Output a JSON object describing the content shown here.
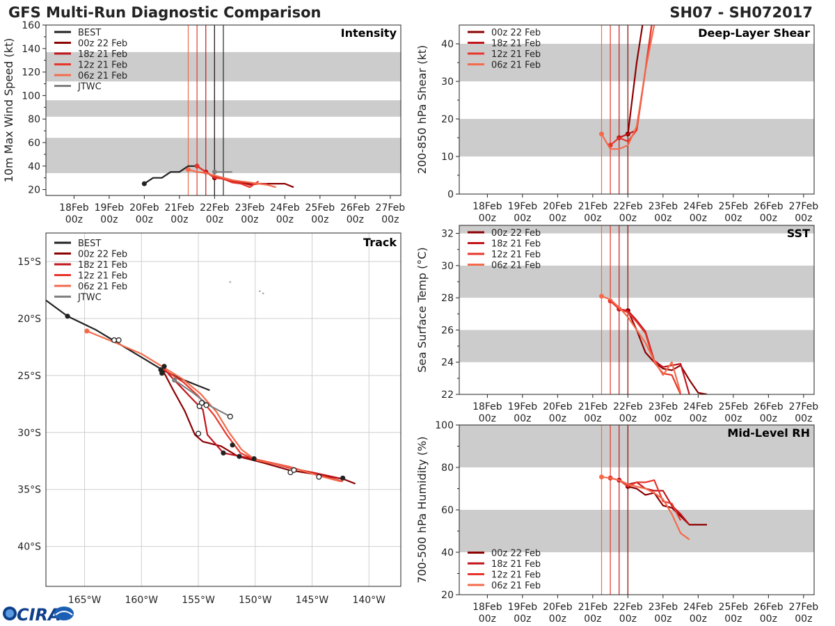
{
  "header": {
    "title": "GFS Multi-Run Diagnostic Comparison",
    "storm_id": "SH07 - SH072017"
  },
  "logo": {
    "text": "CIRA"
  },
  "colors": {
    "best": "#222222",
    "jtwc": "#808080",
    "run_00z22": "#8b0000",
    "run_18z21": "#c0151b",
    "run_12z21": "#e8352a",
    "run_06z21": "#f46a4b",
    "band": "#cccccc"
  },
  "time_axis": {
    "tick_days": [
      "18Feb",
      "19Feb",
      "20Feb",
      "21Feb",
      "22Feb",
      "23Feb",
      "24Feb",
      "25Feb",
      "26Feb",
      "27Feb"
    ],
    "tick_hours": [
      "00z",
      "00z",
      "00z",
      "00z",
      "00z",
      "00z",
      "00z",
      "00z",
      "00z",
      "00z"
    ],
    "range_days": [
      17.2,
      27.3
    ]
  },
  "chart_data": [
    {
      "id": "intensity",
      "type": "line",
      "title": "Intensity",
      "ylabel": "10m Max Wind Speed (kt)",
      "ylim": [
        15,
        160
      ],
      "yticks": [
        20,
        40,
        60,
        80,
        100,
        120,
        140,
        160
      ],
      "bands": [
        [
          34,
          64
        ],
        [
          82,
          96
        ],
        [
          112,
          137
        ]
      ],
      "vlines": [
        {
          "series": "06z 21 Feb",
          "x": 21.25
        },
        {
          "series": "12z 21 Feb",
          "x": 21.5
        },
        {
          "series": "18z 21 Feb",
          "x": 21.75
        },
        {
          "series": "00z 22 Feb",
          "x": 22.0
        },
        {
          "series": "BEST",
          "x": 22.0
        },
        {
          "series": "BEST",
          "x": 22.25
        }
      ],
      "legend": [
        "BEST",
        "00z 22 Feb",
        "18z 21 Feb",
        "12z 21 Feb",
        "06z 21 Feb",
        "JTWC"
      ],
      "series": [
        {
          "name": "BEST",
          "x": [
            20.0,
            20.25,
            20.5,
            20.75,
            21.0,
            21.25,
            21.5,
            21.75,
            22.0,
            22.25
          ],
          "y": [
            25,
            30,
            30,
            35,
            35,
            40,
            40,
            35,
            30,
            30
          ]
        },
        {
          "name": "00z 22 Feb",
          "x": [
            22.0,
            22.25,
            22.5,
            22.75,
            23.0,
            23.25,
            23.5,
            23.75,
            24.0,
            24.25
          ],
          "y": [
            30,
            30,
            28,
            26,
            25,
            25,
            25,
            25,
            25,
            22
          ]
        },
        {
          "name": "18z 21 Feb",
          "x": [
            21.75,
            22.0,
            22.25,
            22.5,
            22.75,
            23.0,
            23.25,
            23.5
          ],
          "y": [
            35,
            31,
            29,
            27,
            26,
            24,
            25,
            25
          ]
        },
        {
          "name": "12z 21 Feb",
          "x": [
            21.5,
            21.75,
            22.0,
            22.25,
            22.5,
            22.75,
            23.0,
            23.25
          ],
          "y": [
            40,
            35,
            30,
            29,
            26,
            25,
            22,
            27
          ]
        },
        {
          "name": "06z 21 Feb",
          "x": [
            21.25,
            21.5,
            21.75,
            22.0,
            22.25,
            22.5,
            22.75,
            23.0,
            23.25,
            23.5,
            23.75
          ],
          "y": [
            37,
            35,
            34,
            32,
            30,
            28,
            27,
            26,
            25,
            24,
            22
          ]
        },
        {
          "name": "JTWC",
          "x": [
            22.0,
            22.25,
            22.5
          ],
          "y": [
            35,
            35,
            35
          ]
        }
      ]
    },
    {
      "id": "shear",
      "type": "line",
      "title": "Deep-Layer Shear",
      "ylabel": "200-850 hPa Shear (kt)",
      "ylim": [
        0,
        45
      ],
      "yticks": [
        0,
        10,
        20,
        30,
        40
      ],
      "bands": [
        [
          10,
          20
        ],
        [
          30,
          40
        ]
      ],
      "vlines": [
        {
          "series": "06z 21 Feb",
          "x": 21.25
        },
        {
          "series": "12z 21 Feb",
          "x": 21.5
        },
        {
          "series": "18z 21 Feb",
          "x": 21.75
        },
        {
          "series": "00z 22 Feb",
          "x": 22.0
        }
      ],
      "legend": [
        "00z 22 Feb",
        "18z 21 Feb",
        "12z 21 Feb",
        "06z 21 Feb"
      ],
      "series": [
        {
          "name": "00z 22 Feb",
          "x": [
            22.0,
            22.25,
            22.5
          ],
          "y": [
            16,
            35,
            50
          ]
        },
        {
          "name": "18z 21 Feb",
          "x": [
            21.75,
            22.0,
            22.25,
            22.5,
            22.75
          ],
          "y": [
            15,
            16,
            17,
            33,
            50
          ]
        },
        {
          "name": "12z 21 Feb",
          "x": [
            21.5,
            21.75,
            22.0,
            22.25,
            22.5,
            22.75
          ],
          "y": [
            13,
            15,
            14,
            17,
            33,
            50
          ]
        },
        {
          "name": "06z 21 Feb",
          "x": [
            21.25,
            21.5,
            21.75,
            22.0,
            22.25,
            22.5,
            22.75
          ],
          "y": [
            16,
            12,
            12,
            13,
            18,
            33,
            45
          ]
        }
      ]
    },
    {
      "id": "sst",
      "type": "line",
      "title": "SST",
      "ylabel": "Sea Surface Temp (°C)",
      "ylim": [
        22,
        32.5
      ],
      "yticks": [
        22,
        24,
        26,
        28,
        30,
        32
      ],
      "bands": [
        [
          24,
          26
        ],
        [
          28,
          30
        ],
        [
          32,
          32.5
        ]
      ],
      "vlines": [
        {
          "series": "06z 21 Feb",
          "x": 21.25
        },
        {
          "series": "12z 21 Feb",
          "x": 21.5
        },
        {
          "series": "18z 21 Feb",
          "x": 21.75
        },
        {
          "series": "00z 22 Feb",
          "x": 22.0
        }
      ],
      "legend": [
        "00z 22 Feb",
        "18z 21 Feb",
        "12z 21 Feb",
        "06z 21 Feb"
      ],
      "series": [
        {
          "name": "00z 22 Feb",
          "x": [
            22.0,
            22.25,
            22.5,
            22.75,
            23.0,
            23.25,
            23.5,
            23.75,
            24.0,
            24.25
          ],
          "y": [
            27.2,
            26.0,
            24.6,
            24.0,
            23.6,
            23.5,
            23.8,
            22.9,
            22.1,
            22.0
          ]
        },
        {
          "name": "18z 21 Feb",
          "x": [
            21.75,
            22.0,
            22.25,
            22.5,
            22.75,
            23.0,
            23.25,
            23.5,
            23.75
          ],
          "y": [
            27.3,
            27.2,
            26.6,
            25.9,
            24.1,
            23.7,
            23.8,
            23.9,
            22.0
          ]
        },
        {
          "name": "12z 21 Feb",
          "x": [
            21.5,
            21.75,
            22.0,
            22.25,
            22.5,
            22.75,
            23.0,
            23.25,
            23.5
          ],
          "y": [
            27.8,
            27.3,
            27.1,
            26.5,
            25.8,
            24.0,
            23.3,
            23.2,
            22.0
          ]
        },
        {
          "name": "06z 21 Feb",
          "x": [
            21.25,
            21.5,
            21.75,
            22.0,
            22.25,
            22.5,
            22.75,
            23.0,
            23.25,
            23.5
          ],
          "y": [
            28.1,
            27.9,
            27.4,
            26.8,
            26.0,
            25.2,
            24.1,
            23.2,
            24.0,
            22.1
          ]
        }
      ]
    },
    {
      "id": "rh",
      "type": "line",
      "title": "Mid-Level RH",
      "ylabel": "700-500 hPa Humidity (%)",
      "ylim": [
        20,
        100
      ],
      "yticks": [
        20,
        40,
        60,
        80,
        100
      ],
      "bands": [
        [
          40,
          60
        ],
        [
          80,
          100
        ]
      ],
      "vlines": [
        {
          "series": "06z 21 Feb",
          "x": 21.25
        },
        {
          "series": "12z 21 Feb",
          "x": 21.5
        },
        {
          "series": "18z 21 Feb",
          "x": 21.75
        },
        {
          "series": "00z 22 Feb",
          "x": 22.0
        }
      ],
      "legend": [
        "00z 22 Feb",
        "18z 21 Feb",
        "12z 21 Feb",
        "06z 21 Feb"
      ],
      "series": [
        {
          "name": "00z 22 Feb",
          "x": [
            22.0,
            22.25,
            22.5,
            22.75,
            23.0,
            23.25,
            23.5,
            23.75,
            24.0,
            24.25
          ],
          "y": [
            71,
            70,
            67,
            68,
            62,
            61,
            57,
            53,
            53,
            53
          ]
        },
        {
          "name": "18z 21 Feb",
          "x": [
            21.75,
            22.0,
            22.25,
            22.5,
            22.75,
            23.0,
            23.25,
            23.5,
            23.75
          ],
          "y": [
            74,
            72,
            73,
            70,
            69,
            69,
            62,
            58,
            53
          ]
        },
        {
          "name": "12z 21 Feb",
          "x": [
            21.5,
            21.75,
            22.0,
            22.25,
            22.5,
            22.75,
            23.0,
            23.25,
            23.5
          ],
          "y": [
            75,
            74,
            71,
            73,
            73,
            74,
            64,
            63,
            55
          ]
        },
        {
          "name": "06z 21 Feb",
          "x": [
            21.25,
            21.5,
            21.75,
            22.0,
            22.25,
            22.5,
            22.75,
            23.0,
            23.25,
            23.5,
            23.75
          ],
          "y": [
            75.5,
            75,
            74,
            72,
            71,
            70,
            68,
            65,
            58,
            49,
            46
          ]
        }
      ]
    },
    {
      "id": "track",
      "type": "line",
      "title": "Track",
      "xlim": [
        -168.4,
        -137.2
      ],
      "ylim": [
        -43.5,
        -12.5
      ],
      "xticks": [
        -165,
        -160,
        -155,
        -150,
        -145,
        -140
      ],
      "xtick_labels": [
        "165°W",
        "160°W",
        "155°W",
        "150°W",
        "145°W",
        "140°W"
      ],
      "yticks": [
        -15,
        -20,
        -25,
        -30,
        -35,
        -40
      ],
      "ytick_labels": [
        "15°S",
        "20°S",
        "25°S",
        "30°S",
        "35°S",
        "40°S"
      ],
      "legend": [
        "BEST",
        "00z 22 Feb",
        "18z 21 Feb",
        "12z 21 Feb",
        "06z 21 Feb",
        "JTWC"
      ],
      "series": [
        {
          "name": "BEST",
          "lon": [
            -168.4,
            -166.5,
            -164.0,
            -162.0,
            -160.0,
            -158.0,
            -156.5,
            -155.0,
            -154.0
          ],
          "lat": [
            -18.4,
            -19.8,
            -21.0,
            -22.2,
            -23.4,
            -24.6,
            -25.3,
            -25.9,
            -26.3
          ]
        },
        {
          "name": "00z 22 Feb",
          "lon": [
            -158.2,
            -157.2,
            -156.2,
            -155.3,
            -154.6,
            -153.0,
            -151.5,
            -149.5,
            -147.0,
            -144.5,
            -142.2,
            -141.2
          ],
          "lat": [
            -24.4,
            -26.3,
            -28.1,
            -30.2,
            -30.8,
            -31.2,
            -32.1,
            -32.6,
            -33.3,
            -33.7,
            -34.1,
            -34.5
          ]
        },
        {
          "name": "18z 21 Feb",
          "lon": [
            -158.1,
            -157.5,
            -155.4,
            -154.6,
            -154.2,
            -153.5,
            -152.8,
            -150.2,
            -147.0,
            -144.5,
            -142.2
          ],
          "lat": [
            -24.3,
            -25.0,
            -27.2,
            -28.0,
            -30.2,
            -31.0,
            -31.8,
            -32.3,
            -33.1,
            -33.6,
            -34.1
          ]
        },
        {
          "name": "12z 21 Feb",
          "lon": [
            -158.0,
            -156.3,
            -155.0,
            -153.6,
            -152.5,
            -151.3,
            -150.2,
            -147.0,
            -144.3,
            -142.3
          ],
          "lat": [
            -24.5,
            -25.6,
            -26.8,
            -28.5,
            -30.2,
            -31.8,
            -32.3,
            -33.0,
            -33.8,
            -34.3
          ]
        },
        {
          "name": "06z 21 Feb",
          "lon": [
            -164.8,
            -162.1,
            -160.0,
            -158.2,
            -156.4,
            -154.8,
            -153.4,
            -152.3,
            -151.2,
            -150.0,
            -146.7,
            -144.4,
            -142.5
          ],
          "lat": [
            -21.1,
            -22.2,
            -23.1,
            -24.2,
            -25.3,
            -26.6,
            -28.2,
            -30.0,
            -31.5,
            -32.4,
            -33.1,
            -33.8,
            -34.3
          ]
        },
        {
          "name": "JTWC",
          "lon": [
            -157.1,
            -155.5,
            -154.1,
            -152.2
          ],
          "lat": [
            -25.4,
            -26.5,
            -27.6,
            -28.6
          ]
        }
      ],
      "markers_filled": [
        {
          "series": "BEST",
          "lon": -166.5,
          "lat": -19.8
        },
        {
          "series": "BEST",
          "lon": -158.0,
          "lat": -24.2
        },
        {
          "series": "BEST",
          "lon": -158.3,
          "lat": -24.5
        },
        {
          "series": "BEST",
          "lon": -158.2,
          "lat": -24.8
        },
        {
          "series": "BEST",
          "lon": -152.8,
          "lat": -31.8
        },
        {
          "series": "BEST",
          "lon": -152.0,
          "lat": -31.1
        },
        {
          "series": "BEST",
          "lon": -151.4,
          "lat": -32.1
        },
        {
          "series": "BEST",
          "lon": -150.1,
          "lat": -32.3
        },
        {
          "series": "BEST",
          "lon": -142.3,
          "lat": -34.0
        },
        {
          "series": "06z 21 Feb",
          "lon": -164.8,
          "lat": -21.1
        },
        {
          "series": "JTWC",
          "lon": -157.1,
          "lat": -25.4
        }
      ],
      "markers_open": [
        {
          "lon": -162.4,
          "lat": -21.9
        },
        {
          "lon": -162.0,
          "lat": -21.9
        },
        {
          "lon": -155.0,
          "lat": -30.1
        },
        {
          "lon": -154.9,
          "lat": -27.7
        },
        {
          "lon": -154.7,
          "lat": -27.4
        },
        {
          "lon": -154.3,
          "lat": -27.6
        },
        {
          "lon": -152.2,
          "lat": -28.6
        },
        {
          "lon": -146.9,
          "lat": -33.5
        },
        {
          "lon": -146.6,
          "lat": -33.3
        },
        {
          "lon": -144.4,
          "lat": -33.9
        }
      ],
      "islands": [
        {
          "lon": -152.2,
          "lat": -16.8
        },
        {
          "lon": -149.6,
          "lat": -17.6
        },
        {
          "lon": -149.3,
          "lat": -17.8
        }
      ]
    }
  ]
}
